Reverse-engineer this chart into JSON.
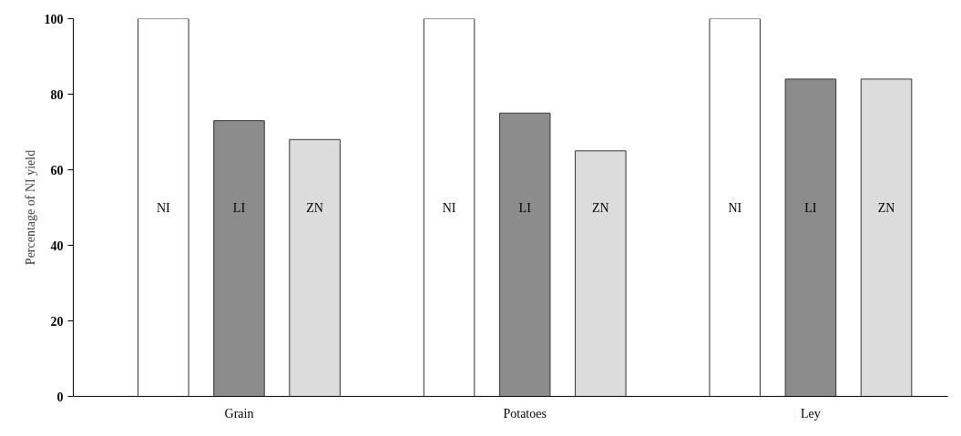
{
  "chart_data": {
    "type": "bar",
    "ylabel": "Percentage of NI yield",
    "categories": [
      "Grain",
      "Potatoes",
      "Ley"
    ],
    "series": [
      {
        "name": "NI",
        "color": "#ffffff",
        "values": [
          100,
          100,
          100
        ]
      },
      {
        "name": "LI",
        "color": "#8c8c8c",
        "values": [
          73,
          75,
          84
        ]
      },
      {
        "name": "ZN",
        "color": "#dcdcdc",
        "values": [
          68,
          65,
          84
        ]
      }
    ],
    "ylim": [
      0,
      100
    ],
    "yticks": [
      0,
      20,
      40,
      60,
      80,
      100
    ],
    "grid": false
  }
}
